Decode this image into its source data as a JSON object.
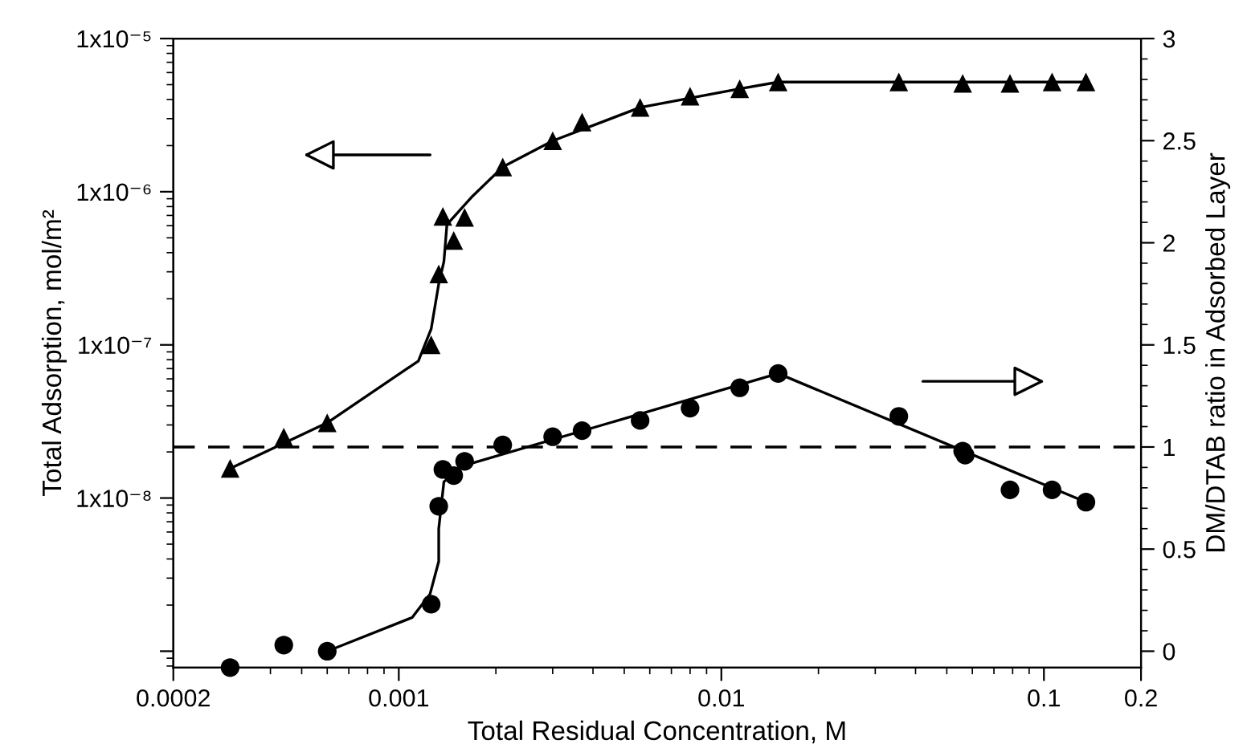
{
  "chart_data": {
    "type": "scatter",
    "xlabel": "Total Residual Concentration, M",
    "ylabel": "Total Adsorption, mol/m²",
    "y2label": "DM/DTAB ratio in Adsorbed Layer",
    "log": "xy",
    "grid": false,
    "legend": false,
    "xlim": [
      0.0002,
      0.2
    ],
    "xticks": [
      0.0002,
      0.001,
      0.01,
      0.1,
      0.2
    ],
    "ylim": [
      7.82e-10,
      1e-05
    ],
    "yticks": [
      {
        "value": 1e-09,
        "label": null
      },
      {
        "value": 1e-08,
        "label": "1x10⁻⁸"
      },
      {
        "value": 1e-07,
        "label": "1x10⁻⁷"
      },
      {
        "value": 1e-06,
        "label": "1x10⁻⁶"
      },
      {
        "value": 1e-05,
        "label": "1x10⁻⁵"
      }
    ],
    "y2lim": [
      -0.08,
      3
    ],
    "y2ticks": [
      0,
      0.5,
      1,
      1.5,
      2,
      2.5,
      3
    ],
    "ref_lines": [
      {
        "axis": "y2",
        "value": 1,
        "color": "#000000",
        "line_style": "dashed"
      }
    ],
    "series": [
      {
        "marker": "triangle",
        "color": "#000000",
        "axis": "y",
        "x": [
          0.0003,
          0.00044,
          0.0006,
          0.00126,
          0.00133,
          0.00148,
          0.00137,
          0.0016,
          0.0021,
          0.003,
          0.0037,
          0.0056,
          0.008,
          0.0114,
          0.015,
          0.0355,
          0.056,
          0.0785,
          0.106,
          0.135
        ],
        "values": [
          1.56e-08,
          2.5e-08,
          3.1e-08,
          1e-07,
          2.9e-07,
          4.8e-07,
          6.9e-07,
          6.8e-07,
          1.45e-06,
          2.15e-06,
          2.85e-06,
          3.55e-06,
          4.2e-06,
          4.7e-06,
          5.2e-06,
          5.2e-06,
          5.1e-06,
          5.1e-06,
          5.2e-06,
          5.2e-06
        ]
      },
      {
        "type": "line",
        "marker": "none",
        "line_style": "solid",
        "color": "#000000",
        "axis": "y",
        "x": [
          0.0003,
          0.0006,
          0.00115,
          0.00126,
          0.00133,
          0.00138,
          0.00141,
          0.00168,
          0.0021,
          0.003,
          0.0056,
          0.0114,
          0.015,
          0.135
        ],
        "values": [
          1.56e-08,
          3.1e-08,
          7.85e-08,
          1.27e-07,
          2.5e-07,
          3.5e-07,
          6.1e-07,
          9.2e-07,
          1.45e-06,
          2.15e-06,
          3.55e-06,
          4.7e-06,
          5.2e-06,
          5.2e-06
        ]
      },
      {
        "marker": "circle",
        "color": "#000000",
        "axis": "y2",
        "x": [
          0.0003,
          0.00044,
          0.0006,
          0.00126,
          0.00133,
          0.00137,
          0.00148,
          0.0016,
          0.0021,
          0.003,
          0.0037,
          0.0056,
          0.008,
          0.0114,
          0.015,
          0.0355,
          0.056,
          0.057,
          0.0785,
          0.106,
          0.135
        ],
        "values": [
          -0.08,
          0.03,
          0.0,
          0.23,
          0.71,
          0.89,
          0.86,
          0.93,
          1.01,
          1.05,
          1.08,
          1.13,
          1.19,
          1.29,
          1.36,
          1.15,
          0.98,
          0.96,
          0.79,
          0.79,
          0.73
        ]
      },
      {
        "type": "line",
        "marker": "none",
        "line_style": "solid",
        "color": "#000000",
        "axis": "y2",
        "x": [
          0.0006,
          0.0011,
          0.00125,
          0.00133,
          0.00133,
          0.00138,
          0.0016,
          0.015,
          0.135
        ],
        "values": [
          0.0,
          0.165,
          0.28,
          0.44,
          0.6,
          0.83,
          0.91,
          1.36,
          0.73
        ]
      }
    ]
  }
}
